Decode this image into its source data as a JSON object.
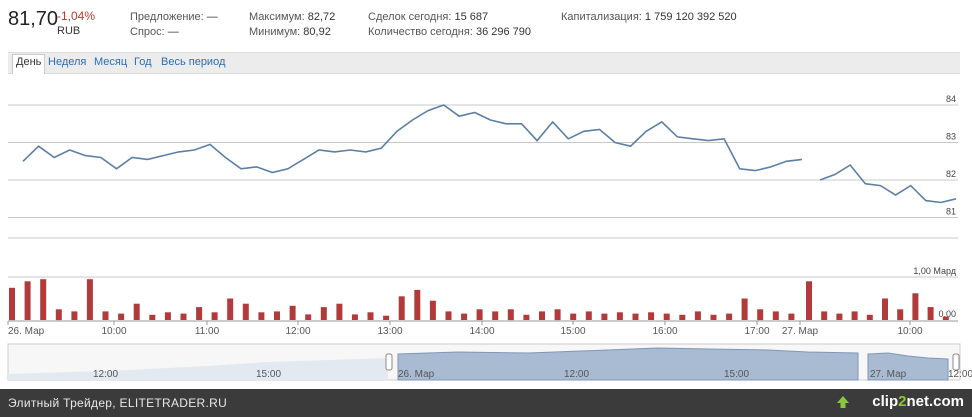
{
  "quote": {
    "price": "81,70",
    "change": "-1,04%",
    "currency": "RUB",
    "change_color": "#c0392b"
  },
  "stats": {
    "offer_label": "Предложение:",
    "offer_value": "—",
    "bid_label": "Спрос:",
    "bid_value": "—",
    "max_label": "Максимум:",
    "max_value": "82,72",
    "min_label": "Минимум:",
    "min_value": "80,92",
    "deals_label": "Сделок сегодня:",
    "deals_value": "15 687",
    "volume_label": "Количество сегодня:",
    "volume_value": "36 296 790",
    "cap_label": "Капитализация:",
    "cap_value": "1 759 120 392 520"
  },
  "tabs": [
    {
      "label": "День",
      "active": true
    },
    {
      "label": "Неделя",
      "active": false
    },
    {
      "label": "Месяц",
      "active": false
    },
    {
      "label": "Год",
      "active": false
    },
    {
      "label": "Весь период",
      "active": false
    }
  ],
  "chart_data": {
    "type": "line",
    "price_axis_ticks": [
      "84",
      "83",
      "82",
      "81"
    ],
    "volume_axis_ticks": [
      "1,00 Мард",
      "0,00"
    ],
    "x_tick_labels": [
      "26. Мар",
      "10:00",
      "11:00",
      "12:00",
      "13:00",
      "14:00",
      "15:00",
      "16:00",
      "17:00",
      "27. Мар",
      "10:00"
    ],
    "segments": [
      {
        "day": "26. Мар",
        "price": [
          82.5,
          82.9,
          82.6,
          82.8,
          82.65,
          82.6,
          82.3,
          82.6,
          82.55,
          82.65,
          82.75,
          82.8,
          82.95,
          82.6,
          82.3,
          82.35,
          82.2,
          82.3,
          82.55,
          82.8,
          82.75,
          82.8,
          82.75,
          82.85,
          83.3,
          83.6,
          83.85,
          84.0,
          83.7,
          83.8,
          83.6,
          83.5,
          83.5,
          83.05,
          83.55,
          83.1,
          83.3,
          83.35,
          83.0,
          82.9,
          83.3,
          83.55,
          83.15,
          83.1,
          83.05,
          83.1,
          82.3,
          82.25,
          82.35,
          82.5,
          82.55
        ],
        "volume": [
          0.75,
          0.9,
          0.95,
          0.25,
          0.2,
          0.95,
          0.2,
          0.15,
          0.38,
          0.12,
          0.18,
          0.15,
          0.3,
          0.18,
          0.5,
          0.38,
          0.18,
          0.2,
          0.33,
          0.13,
          0.3,
          0.38,
          0.13,
          0.18,
          0.1,
          0.55,
          0.7,
          0.45,
          0.2,
          0.15,
          0.25,
          0.2,
          0.25,
          0.12,
          0.2,
          0.25,
          0.15,
          0.2,
          0.15,
          0.18,
          0.15,
          0.18,
          0.15,
          0.12,
          0.2,
          0.12,
          0.15,
          0.5,
          0.25,
          0.2,
          0.15
        ]
      },
      {
        "day": "27. Мар",
        "price": [
          82.0,
          82.15,
          82.4,
          81.9,
          81.85,
          81.6,
          81.85,
          81.45,
          81.4,
          81.5
        ],
        "volume": [
          0.9,
          0.2,
          0.15,
          0.2,
          0.12,
          0.5,
          0.25,
          0.62,
          0.3,
          0.08
        ]
      }
    ]
  },
  "navigator": {
    "labels": [
      "12:00",
      "15:00",
      "26. Мар",
      "12:00",
      "15:00",
      "27. Мар",
      "12:00"
    ]
  },
  "footer": {
    "caption": "Элитный Трейдер, ELITETRADER.RU",
    "logo_pre": "clip",
    "logo_num": "2",
    "logo_post": "net.com"
  },
  "colors": {
    "price_line": "#5b7fa6",
    "volume_bar": "#b23a3a",
    "grid": "#c8c8c8",
    "navigator_fill": "#a9bbd3",
    "navigator_fill_light": "#e3e9f1",
    "footer_bg": "#3b3b3b",
    "logo_green": "#8cc63f"
  }
}
